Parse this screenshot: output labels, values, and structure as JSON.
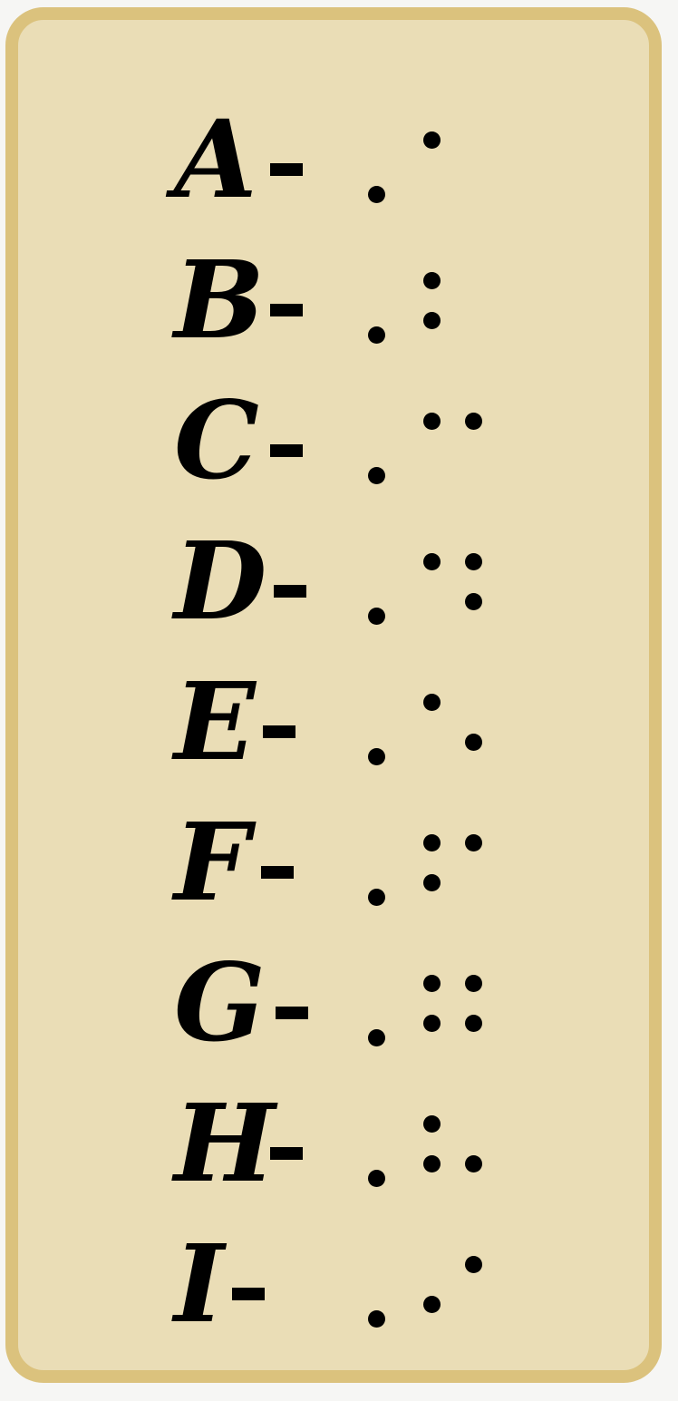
{
  "rows": [
    {
      "letter": "A",
      "dots": [
        1
      ]
    },
    {
      "letter": "B",
      "dots": [
        1,
        2
      ]
    },
    {
      "letter": "C",
      "dots": [
        1,
        4
      ]
    },
    {
      "letter": "D",
      "dots": [
        1,
        4,
        5
      ]
    },
    {
      "letter": "E",
      "dots": [
        1,
        5
      ]
    },
    {
      "letter": "F",
      "dots": [
        1,
        2,
        4
      ]
    },
    {
      "letter": "G",
      "dots": [
        1,
        2,
        4,
        5
      ]
    },
    {
      "letter": "H",
      "dots": [
        1,
        2,
        5
      ]
    },
    {
      "letter": "I",
      "dots": [
        2,
        4
      ]
    }
  ],
  "colors": {
    "background": "#eaddb6",
    "border": "#dbc27d",
    "ink": "#000000"
  }
}
